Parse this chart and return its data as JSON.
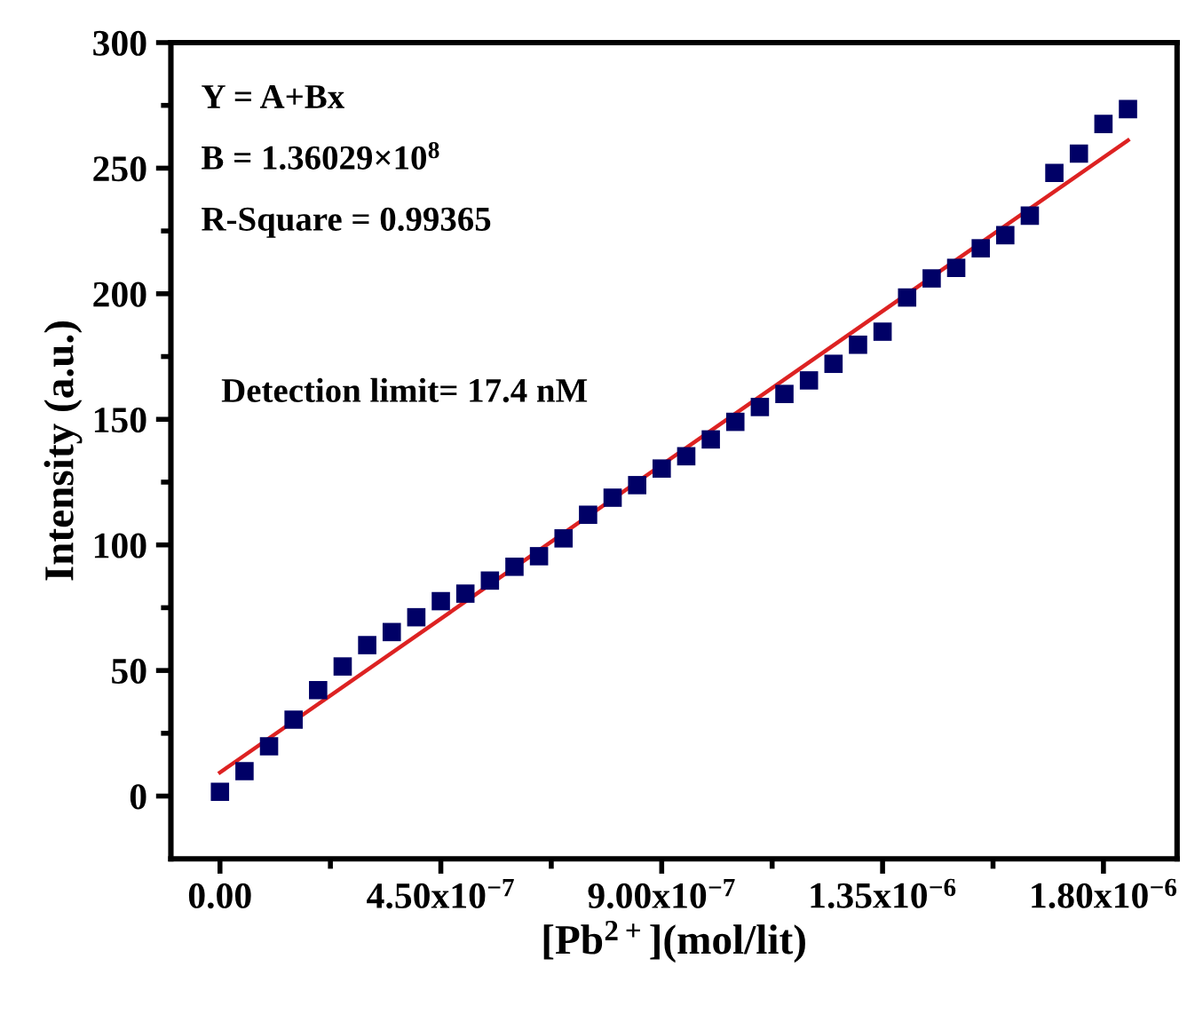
{
  "chart_data": {
    "type": "scatter",
    "xlabel": "[Pb$^{2+}$](mol/lit)",
    "ylabel": "Intensity (a.u.)",
    "annotations": [
      "Y = A+Bx",
      "B = 1.36029×10$^{8}$",
      "R-Square = 0.99365",
      "Detection limit= 17.4 nM"
    ],
    "x": [
      0,
      5e-08,
      1e-07,
      1.5e-07,
      2e-07,
      2.5e-07,
      3e-07,
      3.5e-07,
      4e-07,
      4.5e-07,
      5e-07,
      5.5e-07,
      6e-07,
      6.5e-07,
      7e-07,
      7.5e-07,
      8e-07,
      8.5e-07,
      9e-07,
      9.5e-07,
      1e-06,
      1.05e-06,
      1.1e-06,
      1.15e-06,
      1.2e-06,
      1.25e-06,
      1.3e-06,
      1.35e-06,
      1.4e-06,
      1.45e-06,
      1.5e-06,
      1.55e-06,
      1.6e-06,
      1.65e-06,
      1.7e-06,
      1.75e-06,
      1.8e-06,
      1.85e-06
    ],
    "series": [
      {
        "color": "#000066",
        "marker": "square",
        "values": [
          1.7,
          9.9,
          19.8,
          30.4,
          42.2,
          51.6,
          60.1,
          65.3,
          71.2,
          77.6,
          80.6,
          85.8,
          91.3,
          95.5,
          102.6,
          112.0,
          118.8,
          123.8,
          130.4,
          135.3,
          142.0,
          149.0,
          154.9,
          160.1,
          165.5,
          172.1,
          179.7,
          184.9,
          198.5,
          206.1,
          210.3,
          218.1,
          223.3,
          231.1,
          248.1,
          255.8,
          267.6,
          273.5
        ]
      },
      {
        "type": "line",
        "color": "#dd2222",
        "marker": "none",
        "line_style": "solid",
        "x": [
          0,
          1.85e-06
        ],
        "values": [
          9.4,
          261.1
        ]
      }
    ],
    "xlim": [
      -1e-07,
      1.95e-06
    ],
    "xticks": [
      {
        "value": 0,
        "label": "0.00"
      },
      {
        "value": 2.25e-07,
        "label": null
      },
      {
        "value": 4.5e-07,
        "label": "4.50x10$^{−7}$"
      },
      {
        "value": 6.75e-07,
        "label": null
      },
      {
        "value": 9e-07,
        "label": "9.00x10$^{−7}$"
      },
      {
        "value": 1.125e-06,
        "label": null
      },
      {
        "value": 1.35e-06,
        "label": "1.35x10$^{−6}$"
      },
      {
        "value": 1.575e-06,
        "label": null
      },
      {
        "value": 1.8e-06,
        "label": "1.80x10$^{−6}$"
      }
    ],
    "ylim": [
      -25,
      300
    ],
    "yticks": [
      0,
      {
        "value": 25,
        "label": null
      },
      50,
      {
        "value": 75,
        "label": null
      },
      100,
      {
        "value": 125,
        "label": null
      },
      150,
      {
        "value": 175,
        "label": null
      },
      200,
      {
        "value": 225,
        "label": null
      },
      250,
      {
        "value": 275,
        "label": null
      },
      300
    ],
    "grid": false,
    "legend": false
  }
}
